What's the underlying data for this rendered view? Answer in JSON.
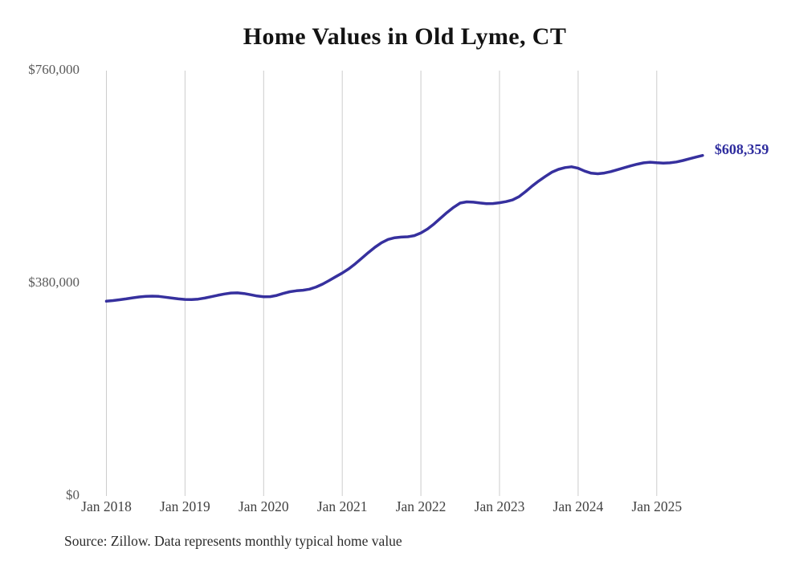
{
  "page": {
    "background": "#ffffff"
  },
  "chart_data": {
    "type": "line",
    "title": "Home Values in Old Lyme, CT",
    "series_name": "Monthly typical home value",
    "x_monthly_start": "Jan 2018",
    "x_monthly_end": "Aug 2025",
    "x_tick_labels": [
      "Jan 2018",
      "Jan 2019",
      "Jan 2020",
      "Jan 2021",
      "Jan 2022",
      "Jan 2023",
      "Jan 2024",
      "Jan 2025"
    ],
    "y_ticks": [
      {
        "label": "$0",
        "value": 0
      },
      {
        "label": "$380,000",
        "value": 380000
      },
      {
        "label": "$760,000",
        "value": 760000
      }
    ],
    "ylim": [
      0,
      760000
    ],
    "values": [
      348000,
      349200,
      350600,
      352200,
      354000,
      355600,
      356600,
      357000,
      356600,
      355200,
      353600,
      352200,
      351200,
      351000,
      351800,
      353600,
      356000,
      358600,
      361000,
      362600,
      363000,
      361800,
      359600,
      357400,
      356000,
      356200,
      358400,
      362000,
      365000,
      366600,
      367600,
      369600,
      373400,
      378600,
      385000,
      391800,
      398400,
      406000,
      415000,
      425000,
      435000,
      444600,
      452600,
      458400,
      461400,
      462600,
      463200,
      465200,
      470000,
      477000,
      486000,
      496400,
      506600,
      515800,
      523400,
      525600,
      525000,
      523600,
      522400,
      522600,
      524000,
      526000,
      529000,
      535000,
      544000,
      554000,
      563000,
      571000,
      578600,
      583600,
      586800,
      588200,
      585600,
      580400,
      576800,
      575800,
      577000,
      579600,
      583000,
      586400,
      589800,
      592800,
      595200,
      596400,
      595400,
      594600,
      595200,
      596800,
      599400,
      602600,
      605600,
      608359
    ],
    "end_label": "$608,359",
    "line_color": "#36309e",
    "grid_color": "#cccccc",
    "grid": "vertical-only",
    "legend_position": "none"
  },
  "footer": {
    "source": "Source: Zillow. Data represents monthly typical home value"
  }
}
